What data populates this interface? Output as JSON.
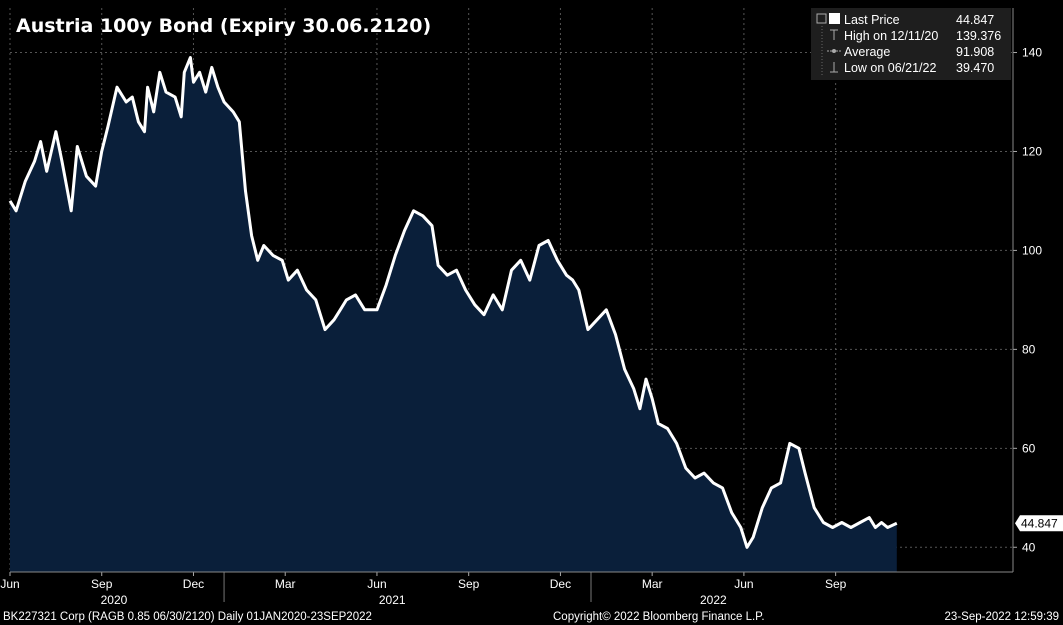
{
  "chart_data": {
    "type": "area",
    "title": "Austria 100y Bond (Expiry 30.06.2120)",
    "colors": {
      "background": "#000000",
      "fill": "#0a1f3a",
      "line": "#ffffff",
      "grid": "#555555"
    },
    "yaxis": {
      "ylim": [
        35,
        149
      ],
      "ticks": [
        40,
        60,
        80,
        100,
        120,
        140
      ]
    },
    "xaxis": {
      "xlim": [
        0,
        32.8
      ],
      "month_ticks": [
        {
          "label": "Jun",
          "x": 0
        },
        {
          "label": "Sep",
          "x": 3
        },
        {
          "label": "Dec",
          "x": 6
        },
        {
          "label": "Mar",
          "x": 9
        },
        {
          "label": "Jun",
          "x": 12
        },
        {
          "label": "Sep",
          "x": 15
        },
        {
          "label": "Dec",
          "x": 18
        },
        {
          "label": "Mar",
          "x": 21
        },
        {
          "label": "Jun",
          "x": 24
        },
        {
          "label": "Sep",
          "x": 27
        }
      ],
      "year_labels": [
        {
          "label": "2020",
          "x": 3.4
        },
        {
          "label": "2021",
          "x": 12.5
        },
        {
          "label": "2022",
          "x": 23.0
        }
      ],
      "year_separators": [
        7.0,
        19.0
      ]
    },
    "series": [
      {
        "name": "Last Price",
        "x": [
          0,
          0.2,
          0.5,
          0.8,
          1.0,
          1.2,
          1.5,
          1.7,
          2.0,
          2.2,
          2.5,
          2.8,
          3.0,
          3.2,
          3.5,
          3.8,
          4.0,
          4.2,
          4.4,
          4.5,
          4.7,
          4.9,
          5.1,
          5.4,
          5.6,
          5.7,
          5.9,
          6.0,
          6.2,
          6.4,
          6.6,
          6.8,
          7.0,
          7.3,
          7.5,
          7.7,
          7.9,
          8.1,
          8.3,
          8.6,
          8.9,
          9.1,
          9.4,
          9.7,
          10.0,
          10.3,
          10.6,
          10.8,
          11.0,
          11.3,
          11.6,
          12.0,
          12.3,
          12.6,
          12.9,
          13.2,
          13.5,
          13.8,
          14.0,
          14.3,
          14.6,
          14.9,
          15.2,
          15.5,
          15.8,
          16.1,
          16.4,
          16.7,
          17.0,
          17.3,
          17.6,
          17.9,
          18.2,
          18.4,
          18.6,
          18.9,
          19.2,
          19.5,
          19.8,
          20.1,
          20.4,
          20.6,
          20.8,
          21.0,
          21.2,
          21.5,
          21.8,
          22.1,
          22.4,
          22.7,
          23.0,
          23.3,
          23.6,
          23.9,
          24.1,
          24.3,
          24.6,
          24.9,
          25.2,
          25.5,
          25.8,
          26.0,
          26.3,
          26.6,
          26.9,
          27.2,
          27.5,
          27.8,
          28.1,
          28.3,
          28.5,
          28.7,
          29.0
        ],
        "values": [
          110,
          108,
          114,
          118,
          122,
          116,
          124,
          118,
          108,
          121,
          115,
          113,
          120,
          125,
          133,
          130,
          131,
          126,
          124,
          133,
          128,
          136,
          132,
          131,
          127,
          136,
          139,
          134,
          136,
          132,
          137,
          133,
          130,
          128,
          126,
          112,
          103,
          98,
          101,
          99,
          98,
          94,
          96,
          92,
          90,
          84,
          86,
          88,
          90,
          91,
          88,
          88,
          93,
          99,
          104,
          108,
          107,
          105,
          97,
          95,
          96,
          92,
          89,
          87,
          91,
          88,
          96,
          98,
          94,
          101,
          102,
          98,
          95,
          94,
          92,
          84,
          86,
          88,
          83,
          76,
          72,
          68,
          74,
          70,
          65,
          64,
          61,
          56,
          54,
          55,
          53,
          52,
          47,
          44,
          40,
          42,
          48,
          52,
          53,
          61,
          60,
          55,
          48,
          45,
          44,
          45,
          44,
          45,
          46,
          44,
          45,
          44,
          44.847
        ]
      }
    ],
    "last_value": 44.847,
    "last_value_label": "44.847",
    "legend": [
      {
        "label": "Last Price",
        "value": "44.847"
      },
      {
        "label": "High on 12/11/20",
        "value": "139.376"
      },
      {
        "label": "Average",
        "value": "91.908"
      },
      {
        "label": "Low on 06/21/22",
        "value": "39.470"
      }
    ],
    "footer": {
      "left": "BK227321 Corp (RAGB 0.85 06/30/2120)  Daily 01JAN2020-23SEP2022",
      "center": "Copyright© 2022 Bloomberg Finance L.P.",
      "right": "23-Sep-2022 12:59:39"
    }
  }
}
